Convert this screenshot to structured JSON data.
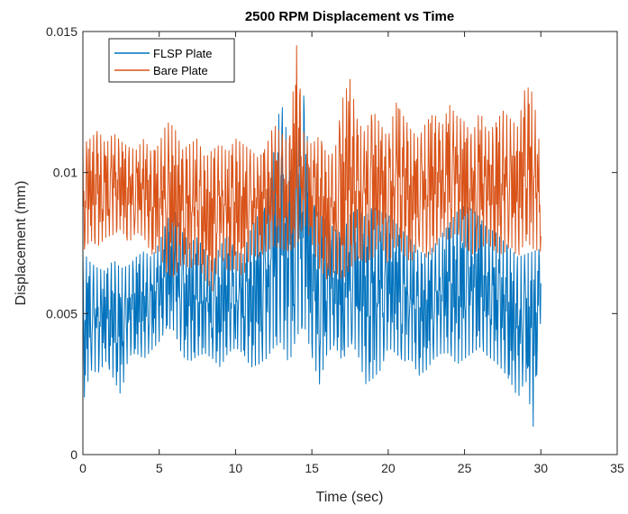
{
  "chart_data": {
    "type": "line",
    "title": "2500 RPM Displacement vs Time",
    "xlabel": "Time (sec)",
    "ylabel": "Displacement (mm)",
    "xlim": [
      0,
      35
    ],
    "ylim": [
      0,
      0.015
    ],
    "xticks": [
      0,
      5,
      10,
      15,
      20,
      25,
      30,
      35
    ],
    "xtick_labels": [
      "0",
      "5",
      "10",
      "15",
      "20",
      "25",
      "30",
      "35"
    ],
    "yticks": [
      0,
      0.005,
      0.01,
      0.015
    ],
    "ytick_labels": [
      "0",
      "0.005",
      "0.01",
      "0.015"
    ],
    "grid": false,
    "legend_position": "top-left",
    "series": [
      {
        "name": "FLSP Plate",
        "color": "#0072BD",
        "x": [
          0,
          0.5,
          1,
          1.5,
          2,
          2.5,
          3,
          3.5,
          4,
          4.5,
          5,
          5.5,
          6,
          6.5,
          7,
          7.5,
          8,
          8.5,
          9,
          9.5,
          10,
          10.5,
          11,
          11.5,
          12,
          12.5,
          13,
          13.5,
          14,
          14.5,
          15,
          15.5,
          16,
          16.5,
          17,
          17.5,
          18,
          18.5,
          19,
          19.5,
          20,
          20.5,
          21,
          21.5,
          22,
          22.5,
          23,
          23.5,
          24,
          24.5,
          25,
          25.5,
          26,
          26.5,
          27,
          27.5,
          28,
          28.5,
          29,
          29.5,
          30
        ],
        "y_upper": [
          0.0072,
          0.0068,
          0.0066,
          0.0065,
          0.0069,
          0.0066,
          0.0067,
          0.007,
          0.0072,
          0.007,
          0.0075,
          0.0083,
          0.0087,
          0.0079,
          0.0075,
          0.0077,
          0.0072,
          0.0068,
          0.0074,
          0.0078,
          0.0072,
          0.0071,
          0.008,
          0.0085,
          0.0088,
          0.0112,
          0.0125,
          0.011,
          0.0115,
          0.0128,
          0.009,
          0.0085,
          0.0083,
          0.008,
          0.0078,
          0.0085,
          0.0087,
          0.0084,
          0.0088,
          0.0086,
          0.0085,
          0.0082,
          0.0079,
          0.0076,
          0.0072,
          0.0071,
          0.0074,
          0.0078,
          0.0082,
          0.0086,
          0.0088,
          0.0087,
          0.0084,
          0.008,
          0.0079,
          0.0076,
          0.0073,
          0.007,
          0.0071,
          0.0072,
          0.0073
        ],
        "y_lower": [
          0.0018,
          0.003,
          0.0029,
          0.0033,
          0.0027,
          0.0021,
          0.0035,
          0.0036,
          0.0034,
          0.0037,
          0.004,
          0.0045,
          0.0044,
          0.0035,
          0.0033,
          0.0035,
          0.0036,
          0.0034,
          0.0031,
          0.0036,
          0.0038,
          0.0036,
          0.0031,
          0.0032,
          0.0034,
          0.0038,
          0.004,
          0.0032,
          0.0042,
          0.0046,
          0.0035,
          0.0025,
          0.0036,
          0.0039,
          0.0033,
          0.004,
          0.0036,
          0.0025,
          0.0027,
          0.003,
          0.0038,
          0.0036,
          0.0033,
          0.0034,
          0.0028,
          0.003,
          0.0034,
          0.0036,
          0.0036,
          0.0032,
          0.0034,
          0.0036,
          0.0038,
          0.0035,
          0.0033,
          0.003,
          0.0026,
          0.002,
          0.0027,
          0.001,
          0.0049
        ]
      },
      {
        "name": "Bare Plate",
        "color": "#D95319",
        "x": [
          0,
          0.5,
          1,
          1.5,
          2,
          2.5,
          3,
          3.5,
          4,
          4.5,
          5,
          5.5,
          6,
          6.5,
          7,
          7.5,
          8,
          8.5,
          9,
          9.5,
          10,
          10.5,
          11,
          11.5,
          12,
          12.5,
          13,
          13.5,
          14,
          14.5,
          15,
          15.5,
          16,
          16.5,
          17,
          17.5,
          18,
          18.5,
          19,
          19.5,
          20,
          20.5,
          21,
          21.5,
          22,
          22.5,
          23,
          23.5,
          24,
          24.5,
          25,
          25.5,
          26,
          26.5,
          27,
          27.5,
          28,
          28.5,
          29,
          29.5,
          30
        ],
        "y_upper": [
          0.011,
          0.0112,
          0.0115,
          0.011,
          0.0114,
          0.0111,
          0.0109,
          0.0108,
          0.0112,
          0.0107,
          0.011,
          0.0118,
          0.0116,
          0.0108,
          0.011,
          0.0112,
          0.0105,
          0.0108,
          0.011,
          0.0107,
          0.0112,
          0.011,
          0.0108,
          0.0105,
          0.0109,
          0.0117,
          0.0114,
          0.011,
          0.0145,
          0.0112,
          0.011,
          0.0113,
          0.0106,
          0.0107,
          0.0126,
          0.0133,
          0.0118,
          0.0114,
          0.0122,
          0.0117,
          0.0112,
          0.0125,
          0.012,
          0.0115,
          0.0112,
          0.0118,
          0.0121,
          0.0116,
          0.0124,
          0.012,
          0.0118,
          0.0113,
          0.0122,
          0.0114,
          0.0117,
          0.0122,
          0.0119,
          0.0116,
          0.0131,
          0.0128,
          0.0106
        ],
        "y_lower": [
          0.0072,
          0.0076,
          0.0074,
          0.0077,
          0.0078,
          0.008,
          0.0075,
          0.0079,
          0.0077,
          0.0071,
          0.0072,
          0.0064,
          0.0063,
          0.0068,
          0.0066,
          0.0068,
          0.0062,
          0.0058,
          0.0071,
          0.0065,
          0.0066,
          0.0063,
          0.0071,
          0.007,
          0.0072,
          0.0074,
          0.0073,
          0.0072,
          0.0074,
          0.0082,
          0.0075,
          0.0066,
          0.0062,
          0.0065,
          0.0062,
          0.0066,
          0.007,
          0.0068,
          0.007,
          0.0076,
          0.0067,
          0.0075,
          0.0071,
          0.0068,
          0.0074,
          0.007,
          0.0072,
          0.0078,
          0.0076,
          0.0079,
          0.0074,
          0.0071,
          0.0073,
          0.0075,
          0.0072,
          0.0071,
          0.0074,
          0.007,
          0.0076,
          0.0073,
          0.0072
        ]
      }
    ]
  }
}
